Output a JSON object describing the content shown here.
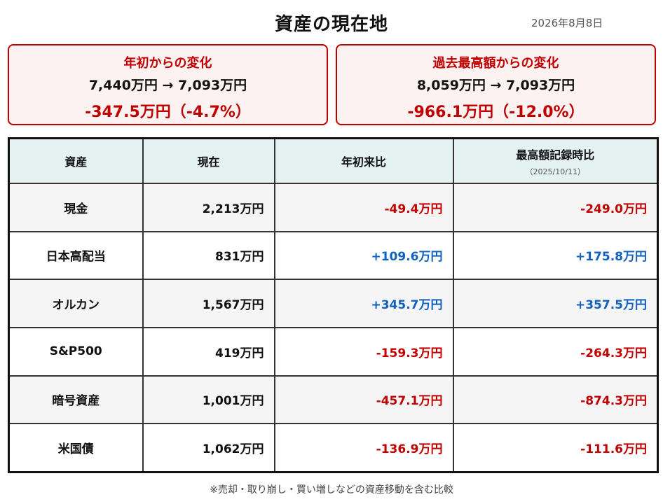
{
  "header": {
    "title": "資産の現在地",
    "date": "2026年8月8日"
  },
  "cards": [
    {
      "title": "年初からの変化",
      "range": "7,440万円 → 7,093万円",
      "delta": "-347.5万円（-4.7%）"
    },
    {
      "title": "過去最高額からの変化",
      "range": "8,059万円 → 7,093万円",
      "delta": "-966.1万円（-12.0%）"
    }
  ],
  "table": {
    "headers": {
      "asset": "資産",
      "current": "現在",
      "ytd": "年初来比",
      "ath": "最高額記録時比",
      "ath_date": "（2025/10/11）"
    },
    "rows": [
      {
        "name": "現金",
        "current": "2,213万円",
        "ytd": "-49.4万円",
        "ath": "-249.0万円"
      },
      {
        "name": "日本高配当",
        "current": "831万円",
        "ytd": "+109.6万円",
        "ath": "+175.8万円"
      },
      {
        "name": "オルカン",
        "current": "1,567万円",
        "ytd": "+345.7万円",
        "ath": "+357.5万円"
      },
      {
        "name": "S&P500",
        "current": "419万円",
        "ytd": "-159.3万円",
        "ath": "-264.3万円"
      },
      {
        "name": "暗号資産",
        "current": "1,001万円",
        "ytd": "-457.1万円",
        "ath": "-874.3万円"
      },
      {
        "name": "米国債",
        "current": "1,062万円",
        "ytd": "-136.9万円",
        "ath": "-111.6万円"
      }
    ]
  },
  "colors": {
    "negative": "#c00000",
    "positive": "#1060c0",
    "header_bg": "#e4f2f2",
    "card_bg": "#fdf2f2"
  },
  "footnote": "※売却・取り崩し・買い増しなどの資産移動を含む比較"
}
